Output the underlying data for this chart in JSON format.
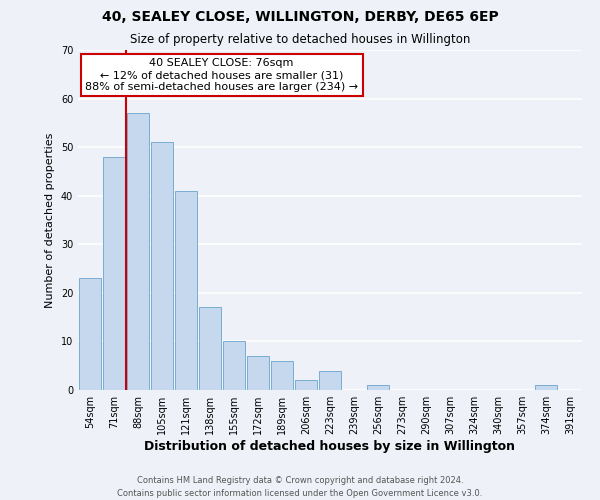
{
  "title": "40, SEALEY CLOSE, WILLINGTON, DERBY, DE65 6EP",
  "subtitle": "Size of property relative to detached houses in Willington",
  "xlabel": "Distribution of detached houses by size in Willington",
  "ylabel": "Number of detached properties",
  "bar_labels": [
    "54sqm",
    "71sqm",
    "88sqm",
    "105sqm",
    "121sqm",
    "138sqm",
    "155sqm",
    "172sqm",
    "189sqm",
    "206sqm",
    "223sqm",
    "239sqm",
    "256sqm",
    "273sqm",
    "290sqm",
    "307sqm",
    "324sqm",
    "340sqm",
    "357sqm",
    "374sqm",
    "391sqm"
  ],
  "bar_values": [
    23,
    48,
    57,
    51,
    41,
    17,
    10,
    7,
    6,
    2,
    4,
    0,
    1,
    0,
    0,
    0,
    0,
    0,
    0,
    1,
    0
  ],
  "bar_color": "#c5d8ed",
  "bar_edgecolor": "#7aadd4",
  "ylim": [
    0,
    70
  ],
  "yticks": [
    0,
    10,
    20,
    30,
    40,
    50,
    60,
    70
  ],
  "vline_x": 1.5,
  "vline_color": "#cc0000",
  "annotation_title": "40 SEALEY CLOSE: 76sqm",
  "annotation_line1": "← 12% of detached houses are smaller (31)",
  "annotation_line2": "88% of semi-detached houses are larger (234) →",
  "annotation_box_facecolor": "#ffffff",
  "annotation_box_edgecolor": "#cc0000",
  "footer_line1": "Contains HM Land Registry data © Crown copyright and database right 2024.",
  "footer_line2": "Contains public sector information licensed under the Open Government Licence v3.0.",
  "background_color": "#eef2f8",
  "grid_color": "#ffffff",
  "title_fontsize": 10,
  "subtitle_fontsize": 8.5,
  "xlabel_fontsize": 9,
  "ylabel_fontsize": 8,
  "tick_fontsize": 7,
  "annotation_fontsize": 8,
  "footer_fontsize": 6
}
